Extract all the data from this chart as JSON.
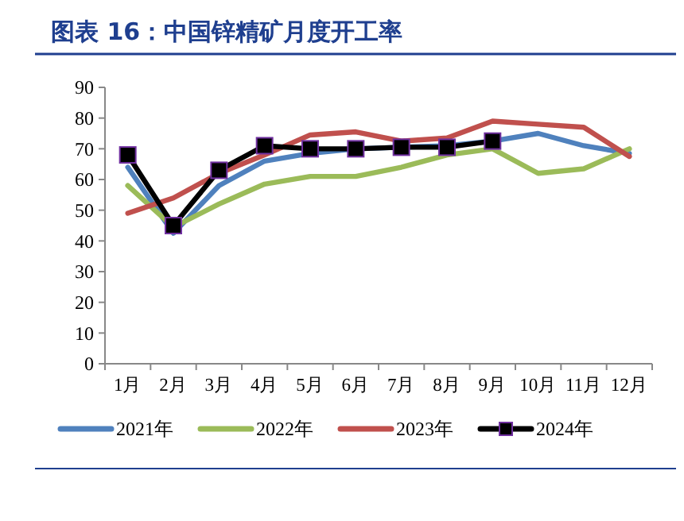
{
  "chart_data": {
    "type": "line",
    "title": "图表 16：中国锌精矿月度开工率",
    "categories": [
      "1月",
      "2月",
      "3月",
      "4月",
      "5月",
      "6月",
      "7月",
      "8月",
      "9月",
      "10月",
      "11月",
      "12月"
    ],
    "series": [
      {
        "name": "2021年",
        "color": "#4f81bd",
        "values": [
          64,
          42.5,
          58,
          66,
          68.5,
          70,
          70.5,
          71,
          72.5,
          75,
          71,
          68.5
        ]
      },
      {
        "name": "2022年",
        "color": "#9bbb59",
        "values": [
          58,
          44.5,
          52,
          58.5,
          61,
          61,
          64,
          68,
          70,
          62,
          63.5,
          70
        ]
      },
      {
        "name": "2023年",
        "color": "#c0504d",
        "values": [
          49,
          54,
          62,
          68,
          74.5,
          75.5,
          72.5,
          73.5,
          79,
          78,
          77,
          67.5
        ]
      },
      {
        "name": "2024年",
        "color": "#000000",
        "marker": "square",
        "values": [
          68,
          45,
          63,
          71,
          70,
          70,
          70.5,
          70.5,
          72.5,
          null,
          null,
          null
        ]
      }
    ],
    "ylim": [
      0,
      90
    ],
    "yticks": [
      0,
      10,
      20,
      30,
      40,
      50,
      60,
      70,
      80,
      90
    ],
    "grid": false,
    "legend": "bottom"
  }
}
